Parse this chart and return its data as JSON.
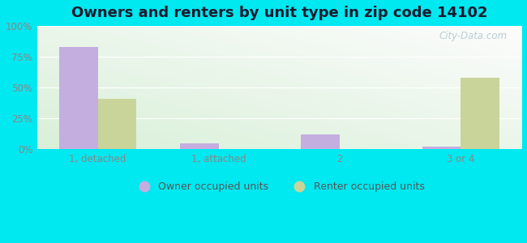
{
  "title": "Owners and renters by unit type in zip code 14102",
  "categories": [
    "1, detached",
    "1, attached",
    "2",
    "3 or 4"
  ],
  "owner_values": [
    83,
    5,
    12,
    2
  ],
  "renter_values": [
    41,
    0,
    0,
    58
  ],
  "owner_color": "#c4aee0",
  "renter_color": "#c8d49a",
  "ylim": [
    0,
    100
  ],
  "yticks": [
    0,
    25,
    50,
    75,
    100
  ],
  "ytick_labels": [
    "0%",
    "25%",
    "50%",
    "75%",
    "100%"
  ],
  "grad_color_topleft": "#d4edda",
  "grad_color_topright": "#f0faf5",
  "grad_color_bottom": "#e8f5e0",
  "outer_bg": "#00e8f0",
  "bar_width": 0.32,
  "legend_owner": "Owner occupied units",
  "legend_renter": "Renter occupied units",
  "watermark": "City-Data.com",
  "title_fontsize": 13,
  "axis_fontsize": 8.5,
  "legend_fontsize": 9,
  "tick_color": "#888888"
}
